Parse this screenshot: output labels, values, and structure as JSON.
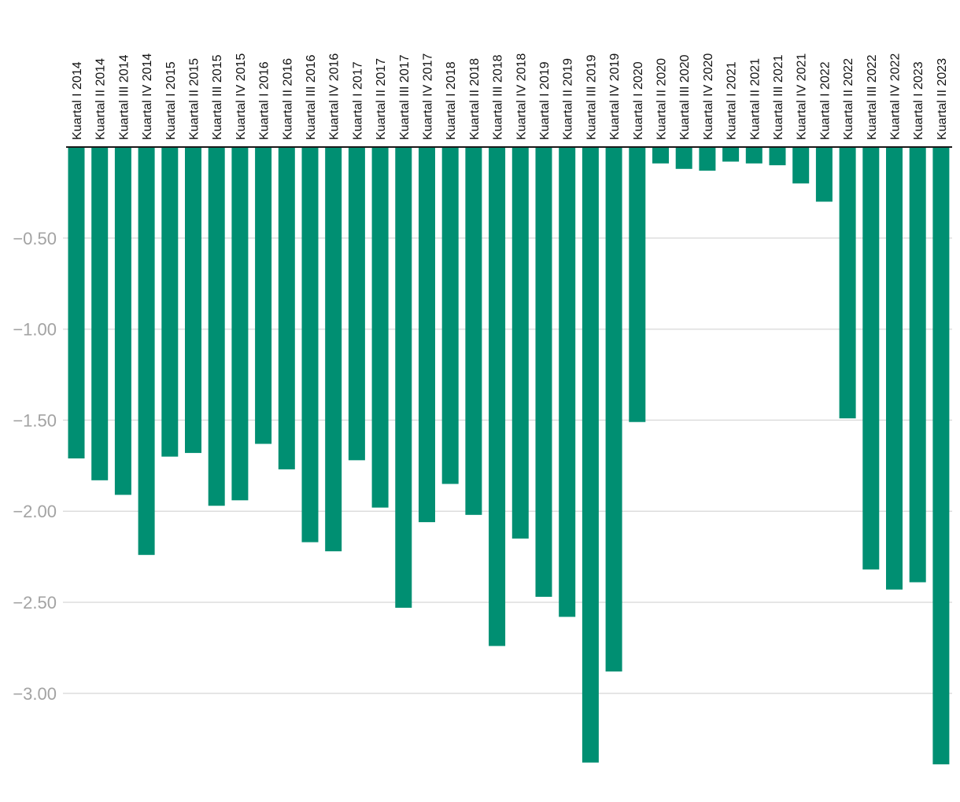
{
  "colors": {
    "bar": "#008f72",
    "grid": "#dddddd",
    "zero_line": "#1a1a1a",
    "y_tick_text": "#a3a3a3",
    "x_tick_text": "#111111"
  },
  "chart_data": {
    "type": "bar",
    "title": "",
    "xlabel": "",
    "ylabel": "",
    "ylim": [
      -3.4,
      0
    ],
    "grid": true,
    "legend": "none",
    "categories": [
      "Kuartal I 2014",
      "Kuartal II 2014",
      "Kuartal III 2014",
      "Kuartal IV 2014",
      "Kuartal I 2015",
      "Kuartal II 2015",
      "Kuartal III 2015",
      "Kuartal IV 2015",
      "Kuartal I 2016",
      "Kuartal II 2016",
      "Kuartal III 2016",
      "Kuartal IV 2016",
      "Kuartal I 2017",
      "Kuartal II 2017",
      "Kuartal III 2017",
      "Kuartal IV 2017",
      "Kuartal I 2018",
      "Kuartal II 2018",
      "Kuartal III 2018",
      "Kuartal IV 2018",
      "Kuartal I 2019",
      "Kuartal II 2019",
      "Kuartal III 2019",
      "Kuartal IV 2019",
      "Kuartal I 2020",
      "Kuartal II 2020",
      "Kuartal III 2020",
      "Kuartal IV 2020",
      "Kuartal I 2021",
      "Kuartal II 2021",
      "Kuartal III 2021",
      "Kuartal IV 2021",
      "Kuartal I 2022",
      "Kuartal II 2022",
      "Kuartal III 2022",
      "Kuartal IV 2022",
      "Kuartal I 2023",
      "Kuartal II 2023"
    ],
    "values": [
      -1.71,
      -1.83,
      -1.91,
      -2.24,
      -1.7,
      -1.68,
      -1.97,
      -1.94,
      -1.63,
      -1.77,
      -2.17,
      -2.22,
      -1.72,
      -1.98,
      -2.53,
      -2.06,
      -1.85,
      -2.02,
      -2.74,
      -2.15,
      -2.47,
      -2.58,
      -3.38,
      -2.88,
      -1.51,
      -0.09,
      -0.12,
      -0.13,
      -0.08,
      -0.09,
      -0.1,
      -0.2,
      -0.3,
      -1.49,
      -2.32,
      -2.43,
      -2.39,
      -3.39
    ],
    "y_ticks": [
      -0.5,
      -1.0,
      -1.5,
      -2.0,
      -2.5,
      -3.0
    ],
    "y_tick_labels": [
      "−0.50",
      "−1.00",
      "−1.50",
      "−2.00",
      "−2.50",
      "−3.00"
    ]
  }
}
